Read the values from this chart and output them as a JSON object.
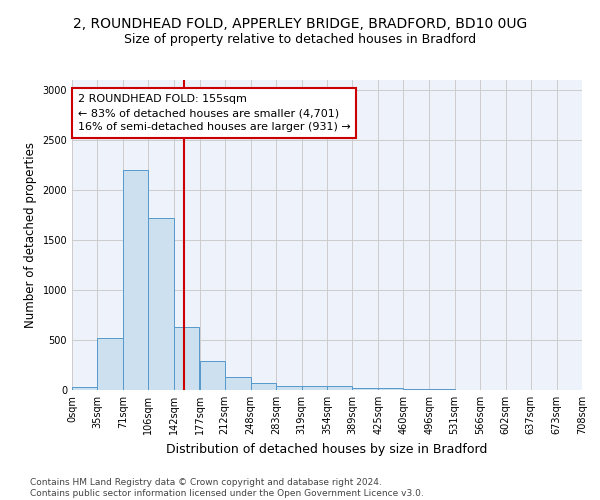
{
  "title_line1": "2, ROUNDHEAD FOLD, APPERLEY BRIDGE, BRADFORD, BD10 0UG",
  "title_line2": "Size of property relative to detached houses in Bradford",
  "xlabel": "Distribution of detached houses by size in Bradford",
  "ylabel": "Number of detached properties",
  "footnote": "Contains HM Land Registry data © Crown copyright and database right 2024.\nContains public sector information licensed under the Open Government Licence v3.0.",
  "bar_edges": [
    0,
    35,
    71,
    106,
    142,
    177,
    212,
    248,
    283,
    319,
    354,
    389,
    425,
    460,
    496,
    531,
    566,
    602,
    637,
    673,
    708
  ],
  "bar_heights": [
    30,
    520,
    2200,
    1720,
    635,
    290,
    130,
    75,
    45,
    40,
    40,
    25,
    20,
    15,
    10,
    5,
    5,
    5,
    3,
    3
  ],
  "bar_color": "#cce0f0",
  "bar_edge_color": "#5599cc",
  "property_line_x": 155,
  "property_line_color": "#cc0000",
  "annotation_text": "2 ROUNDHEAD FOLD: 155sqm\n← 83% of detached houses are smaller (4,701)\n16% of semi-detached houses are larger (931) →",
  "annotation_box_color": "#ffffff",
  "annotation_box_edge_color": "#cc0000",
  "ylim": [
    0,
    3100
  ],
  "yticks": [
    0,
    500,
    1000,
    1500,
    2000,
    2500,
    3000
  ],
  "grid_color": "#cccccc",
  "background_color": "#eef2fb",
  "title1_fontsize": 10,
  "title2_fontsize": 9,
  "tick_label_fontsize": 7,
  "ylabel_fontsize": 8.5,
  "xlabel_fontsize": 9
}
